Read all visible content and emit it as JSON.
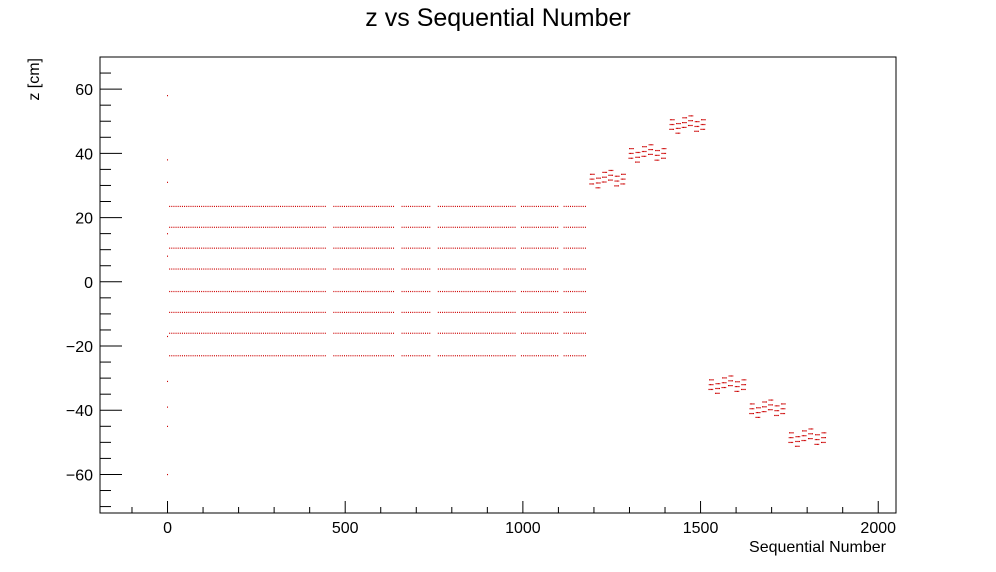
{
  "chart_data": {
    "type": "scatter",
    "title": "z vs Sequential Number",
    "xlabel": "Sequential Number",
    "ylabel": "z [cm]",
    "xlim": [
      -190,
      2050
    ],
    "ylim": [
      -72,
      70
    ],
    "xticks": [
      0,
      500,
      1000,
      1500,
      2000
    ],
    "yticks": [
      -60,
      -40,
      -20,
      0,
      20,
      40,
      60
    ],
    "xtick_labels": [
      "0",
      "500",
      "1000",
      "1500",
      "2000"
    ],
    "ytick_labels": [
      "−60",
      "−40",
      "−20",
      "0",
      "20",
      "40",
      "60"
    ],
    "grid": false,
    "marker_color": "#cc0000",
    "series": [
      {
        "points_isolated": [
          [
            0,
            58
          ],
          [
            0,
            38
          ],
          [
            0,
            31
          ],
          [
            0,
            15
          ],
          [
            0,
            8
          ],
          [
            0,
            -17
          ],
          [
            0,
            -31
          ],
          [
            0,
            -39
          ],
          [
            0,
            -45
          ],
          [
            0,
            -60
          ]
        ],
        "horizontal_bands": {
          "z_levels": [
            23.5,
            17,
            10.5,
            4,
            -3,
            -9.5,
            -16,
            -23
          ],
          "x_range": [
            0,
            1180
          ],
          "x_step": 6,
          "gap_ranges": [
            [
              445,
              465
            ],
            [
              640,
              655
            ],
            [
              740,
              760
            ],
            [
              980,
              995
            ],
            [
              1100,
              1115
            ]
          ]
        },
        "ladder_clusters": [
          {
            "x_start": 1185,
            "x_end": 1290,
            "z_center": 32,
            "z_span": 3
          },
          {
            "x_start": 1295,
            "x_end": 1405,
            "z_center": 40,
            "z_span": 3
          },
          {
            "x_start": 1410,
            "x_end": 1515,
            "z_center": 49,
            "z_span": 3
          },
          {
            "x_start": 1520,
            "x_end": 1630,
            "z_center": -32,
            "z_span": 3
          },
          {
            "x_start": 1635,
            "x_end": 1740,
            "z_center": -39.5,
            "z_span": 3
          },
          {
            "x_start": 1745,
            "x_end": 1855,
            "z_center": -48.5,
            "z_span": 3
          }
        ]
      }
    ]
  }
}
